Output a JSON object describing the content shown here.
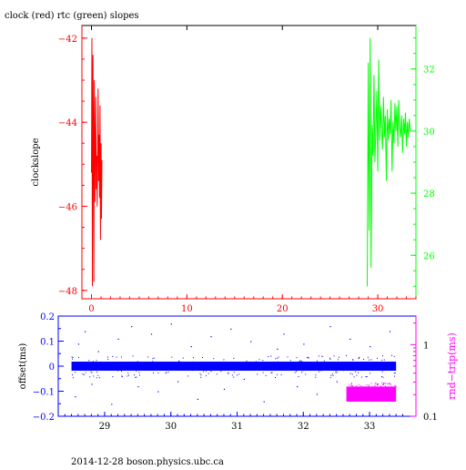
{
  "title": "clock (red) rtc (green) slopes",
  "footer": "2014-12-28  boson.physics.ubc.ca",
  "colors": {
    "clock": "#ff0000",
    "rtc": "#00ff00",
    "offset": "#0000ff",
    "rtrip": "#ff00ff",
    "frame": "#000000"
  },
  "chart_data": [
    {
      "type": "line",
      "title": "clock (red) rtc (green) slopes",
      "ylabel": "clockslope",
      "x_ticks": [
        0,
        10,
        20,
        30
      ],
      "xlim": [
        -1,
        34
      ],
      "ylim": [
        -48.2,
        -41.7
      ],
      "y_ticks": [
        -42,
        -44,
        -46,
        -48
      ],
      "y2lim": [
        24.6,
        33.4
      ],
      "y2_ticks": [
        26,
        28,
        30,
        32
      ],
      "series": [
        {
          "name": "clock",
          "axis": "left",
          "x": [
            0.0,
            0.05,
            0.1,
            0.15,
            0.2,
            0.25,
            0.3,
            0.35,
            0.4,
            0.45,
            0.5,
            0.55,
            0.6,
            0.65,
            0.7,
            0.75,
            0.8,
            0.85,
            0.9,
            0.95,
            1.0,
            1.05,
            1.1
          ],
          "y": [
            -45.2,
            -42.0,
            -47.9,
            -42.4,
            -44.2,
            -47.8,
            -43.0,
            -45.9,
            -44.6,
            -43.4,
            -45.6,
            -44.8,
            -46.0,
            -44.5,
            -43.2,
            -45.4,
            -44.3,
            -45.8,
            -43.6,
            -46.8,
            -44.5,
            -46.3,
            -44.9
          ]
        },
        {
          "name": "rtc",
          "axis": "right",
          "x": [
            28.9,
            29.0,
            29.05,
            29.1,
            29.2,
            29.3,
            29.4,
            29.5,
            29.6,
            29.7,
            29.8,
            29.9,
            30.0,
            30.1,
            30.2,
            30.3,
            30.4,
            30.5,
            30.6,
            30.7,
            30.8,
            30.9,
            31.0,
            31.1,
            31.2,
            31.3,
            31.4,
            31.5,
            31.6,
            31.7,
            31.8,
            31.9,
            32.0,
            32.1,
            32.2,
            32.3,
            32.4,
            32.5,
            32.6,
            32.7,
            32.8,
            32.9,
            33.0,
            33.1,
            33.2,
            33.3,
            33.4
          ],
          "y": [
            25.0,
            32.2,
            29.3,
            26.8,
            33.0,
            25.6,
            30.2,
            29.2,
            31.8,
            29.0,
            30.0,
            31.3,
            28.7,
            32.3,
            29.7,
            30.8,
            30.0,
            29.4,
            31.1,
            29.8,
            30.5,
            28.4,
            30.7,
            29.7,
            30.4,
            29.9,
            31.0,
            28.7,
            30.3,
            29.6,
            30.9,
            30.0,
            30.8,
            29.5,
            31.0,
            30.1,
            29.8,
            30.5,
            29.3,
            30.4,
            29.9,
            30.6,
            29.5,
            30.3,
            29.8,
            30.4,
            30.0
          ]
        }
      ]
    },
    {
      "type": "scatter",
      "ylabel": "offset(ms)",
      "y2label": "rnd−trip(ms)",
      "xlim": [
        28.3,
        33.7
      ],
      "x_ticks": [
        29,
        30,
        31,
        32,
        33
      ],
      "ylim": [
        -0.2,
        0.2
      ],
      "y_ticks": [
        0.2,
        0.1,
        0,
        -0.1,
        -0.2
      ],
      "y2_scale": "log",
      "y2lim": [
        0.1,
        2.5
      ],
      "y2_ticks": [
        0.1,
        1
      ],
      "series": [
        {
          "name": "offset",
          "axis": "left",
          "x_range": [
            28.5,
            33.4
          ],
          "center": 0.0,
          "band": 0.018,
          "sample_points": [
            [
              28.55,
              -0.12
            ],
            [
              28.6,
              0.09
            ],
            [
              28.7,
              0.14
            ],
            [
              28.8,
              -0.07
            ],
            [
              28.9,
              0.06
            ],
            [
              29.1,
              -0.15
            ],
            [
              29.2,
              0.11
            ],
            [
              29.4,
              0.16
            ],
            [
              29.5,
              -0.08
            ],
            [
              29.7,
              0.13
            ],
            [
              29.8,
              -0.1
            ],
            [
              30.0,
              0.17
            ],
            [
              30.1,
              -0.06
            ],
            [
              30.3,
              0.08
            ],
            [
              30.4,
              -0.13
            ],
            [
              30.6,
              0.12
            ],
            [
              30.8,
              -0.09
            ],
            [
              30.9,
              0.15
            ],
            [
              31.1,
              -0.05
            ],
            [
              31.2,
              0.1
            ],
            [
              31.4,
              -0.14
            ],
            [
              31.6,
              0.07
            ],
            [
              31.7,
              0.13
            ],
            [
              31.9,
              -0.08
            ],
            [
              32.0,
              0.09
            ],
            [
              32.2,
              -0.11
            ],
            [
              32.4,
              0.16
            ],
            [
              32.5,
              -0.06
            ],
            [
              32.7,
              0.11
            ],
            [
              32.9,
              -0.12
            ],
            [
              33.0,
              0.08
            ],
            [
              33.2,
              -0.07
            ],
            [
              33.3,
              0.14
            ]
          ]
        },
        {
          "name": "rnd-trip",
          "axis": "right",
          "x_range": [
            32.65,
            33.4
          ],
          "center": 0.2,
          "band_low": 0.16,
          "band_high": 0.26
        }
      ]
    }
  ]
}
